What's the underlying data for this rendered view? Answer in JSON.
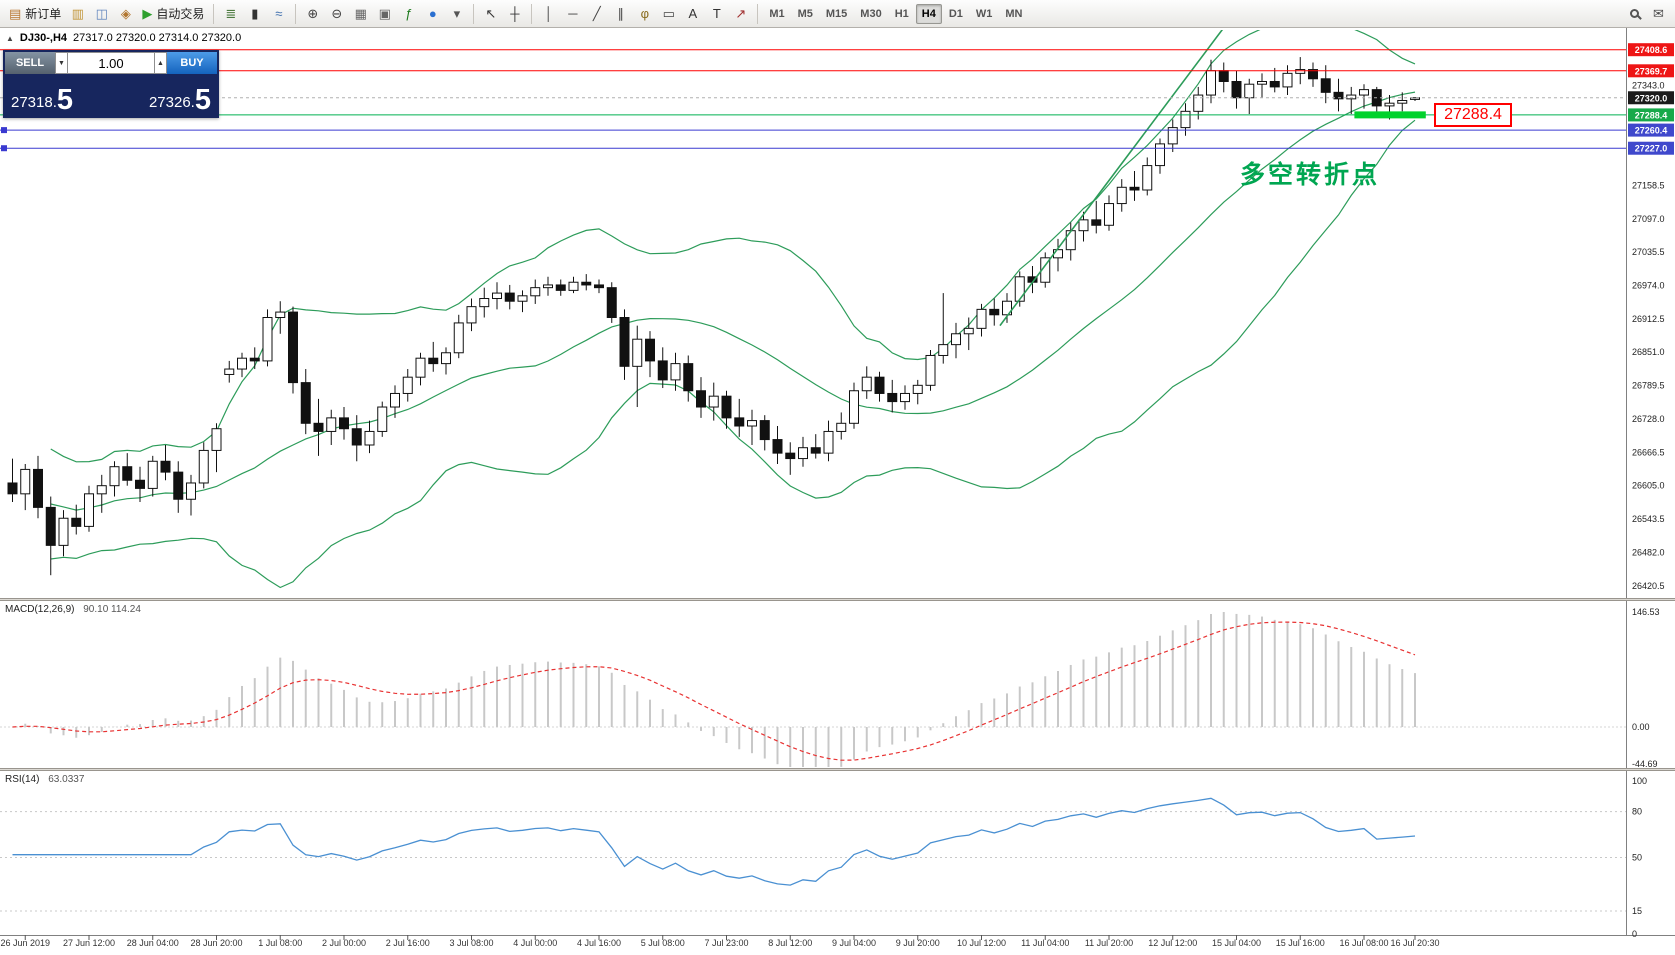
{
  "toolbar": {
    "new_order": {
      "label": "新订单",
      "icon_glyph": "▤"
    },
    "auto_trading": {
      "label": "自动交易",
      "icon_glyph": "▶"
    },
    "messages_icon_glyph": "✉",
    "left_icons": [
      {
        "name": "market-watch-icon",
        "glyph": "▥",
        "color": "#c2963a"
      },
      {
        "name": "data-window-icon",
        "glyph": "◫",
        "color": "#5f84bd"
      },
      {
        "name": "navigator-icon",
        "glyph": "◈",
        "color": "#b2762f"
      }
    ],
    "chart_icons": [
      {
        "name": "bar-chart-icon",
        "glyph": "≣",
        "color": "#4c7a3f"
      },
      {
        "name": "candlestick-chart-icon",
        "glyph": "▮",
        "color": "#333333"
      },
      {
        "name": "line-chart-icon",
        "glyph": "≈",
        "color": "#3f6fae"
      }
    ],
    "tool_icons": [
      {
        "name": "zoom-in-icon",
        "glyph": "⊕",
        "color": "#444444"
      },
      {
        "name": "zoom-out-icon",
        "glyph": "⊖",
        "color": "#444444"
      },
      {
        "name": "tile-windows-icon",
        "glyph": "▦",
        "color": "#666666"
      },
      {
        "name": "arrange-windows-icon",
        "glyph": "▣",
        "color": "#666666"
      },
      {
        "name": "indicators-icon",
        "glyph": "ƒ",
        "color": "#1e7a1e"
      },
      {
        "name": "objects-list-icon",
        "glyph": "●",
        "color": "#2a6fd0"
      },
      {
        "name": "templates-icon",
        "glyph": "▾",
        "color": "#555555"
      }
    ],
    "cursor_icons": [
      {
        "name": "cursor-icon",
        "glyph": "↖",
        "color": "#333333"
      },
      {
        "name": "crosshair-icon",
        "glyph": "┼",
        "color": "#333333"
      }
    ],
    "draw_icons": [
      {
        "name": "vertical-line-icon",
        "glyph": "│",
        "color": "#444444"
      },
      {
        "name": "horizontal-line-icon",
        "glyph": "─",
        "color": "#444444"
      },
      {
        "name": "trendline-icon",
        "glyph": "╱",
        "color": "#444444"
      },
      {
        "name": "channel-icon",
        "glyph": "∥",
        "color": "#444444"
      },
      {
        "name": "fibonacci-icon",
        "glyph": "φ",
        "color": "#8a6d1f"
      },
      {
        "name": "shapes-icon",
        "glyph": "▭",
        "color": "#444444"
      },
      {
        "name": "text-icon",
        "glyph": "A",
        "color": "#333333"
      },
      {
        "name": "label-icon",
        "glyph": "T",
        "color": "#333333"
      },
      {
        "name": "arrows-icon",
        "glyph": "↗",
        "color": "#a03030"
      }
    ],
    "timeframes": [
      "M1",
      "M5",
      "M15",
      "M30",
      "H1",
      "H4",
      "D1",
      "W1",
      "MN"
    ],
    "active_timeframe": "H4"
  },
  "trade_panel": {
    "sell_label": "SELL",
    "buy_label": "BUY",
    "volume": "1.00",
    "spin_down_glyph": "▼",
    "spin_up_glyph": "▲",
    "sell_price_main": "27318.",
    "sell_price_pip": "5",
    "buy_price_main": "27326.",
    "buy_price_pip": "5"
  },
  "chart": {
    "collapse_glyph": "▲",
    "symbol_period": "DJ30-,H4",
    "ohlc_text": "27317.0 27320.0 27314.0 27320.0",
    "annotation": "多空转折点",
    "callout": "27288.4"
  },
  "chart_data": {
    "type": "candlestick",
    "symbol": "DJ30-",
    "timeframe": "H4",
    "price_range": {
      "min": 26398,
      "max": 27432
    },
    "candles": [
      [
        26610,
        26655,
        26575,
        26590
      ],
      [
        26590,
        26645,
        26560,
        26635
      ],
      [
        26635,
        26660,
        26545,
        26565
      ],
      [
        26565,
        26585,
        26440,
        26495
      ],
      [
        26495,
        26560,
        26475,
        26545
      ],
      [
        26545,
        26570,
        26515,
        26530
      ],
      [
        26530,
        26605,
        26520,
        26590
      ],
      [
        26590,
        26625,
        26555,
        26605
      ],
      [
        26605,
        26650,
        26585,
        26640
      ],
      [
        26640,
        26665,
        26605,
        26615
      ],
      [
        26615,
        26640,
        26575,
        26600
      ],
      [
        26600,
        26660,
        26585,
        26650
      ],
      [
        26650,
        26680,
        26615,
        26630
      ],
      [
        26630,
        26650,
        26555,
        26580
      ],
      [
        26580,
        26625,
        26550,
        26610
      ],
      [
        26610,
        26685,
        26600,
        26670
      ],
      [
        26670,
        26720,
        26630,
        26710
      ],
      [
        26810,
        26835,
        26795,
        26820
      ],
      [
        26820,
        26850,
        26805,
        26840
      ],
      [
        26840,
        26860,
        26820,
        26835
      ],
      [
        26835,
        26930,
        26825,
        26915
      ],
      [
        26915,
        26945,
        26885,
        26925
      ],
      [
        26925,
        26935,
        26775,
        26795
      ],
      [
        26795,
        26820,
        26700,
        26720
      ],
      [
        26720,
        26765,
        26660,
        26705
      ],
      [
        26705,
        26745,
        26680,
        26730
      ],
      [
        26730,
        26750,
        26690,
        26710
      ],
      [
        26710,
        26735,
        26650,
        26680
      ],
      [
        26680,
        26725,
        26665,
        26705
      ],
      [
        26705,
        26760,
        26695,
        26750
      ],
      [
        26750,
        26790,
        26730,
        26775
      ],
      [
        26775,
        26820,
        26760,
        26805
      ],
      [
        26805,
        26850,
        26790,
        26840
      ],
      [
        26840,
        26870,
        26815,
        26830
      ],
      [
        26830,
        26860,
        26810,
        26850
      ],
      [
        26850,
        26920,
        26840,
        26905
      ],
      [
        26905,
        26950,
        26890,
        26935
      ],
      [
        26935,
        26970,
        26915,
        26950
      ],
      [
        26950,
        26980,
        26930,
        26960
      ],
      [
        26960,
        26975,
        26930,
        26945
      ],
      [
        26945,
        26965,
        26925,
        26955
      ],
      [
        26955,
        26985,
        26940,
        26970
      ],
      [
        26970,
        26990,
        26955,
        26975
      ],
      [
        26975,
        26985,
        26955,
        26965
      ],
      [
        26965,
        26990,
        26960,
        26980
      ],
      [
        26980,
        26995,
        26965,
        26975
      ],
      [
        26975,
        26985,
        26960,
        26970
      ],
      [
        26970,
        26980,
        26905,
        26915
      ],
      [
        26915,
        26930,
        26800,
        26825
      ],
      [
        26825,
        26900,
        26750,
        26875
      ],
      [
        26875,
        26890,
        26805,
        26835
      ],
      [
        26835,
        26860,
        26785,
        26800
      ],
      [
        26800,
        26850,
        26780,
        26830
      ],
      [
        26830,
        26845,
        26760,
        26780
      ],
      [
        26780,
        26805,
        26730,
        26750
      ],
      [
        26750,
        26795,
        26725,
        26770
      ],
      [
        26770,
        26780,
        26710,
        26730
      ],
      [
        26730,
        26765,
        26695,
        26715
      ],
      [
        26715,
        26745,
        26680,
        26725
      ],
      [
        26725,
        26735,
        26670,
        26690
      ],
      [
        26690,
        26715,
        26645,
        26665
      ],
      [
        26665,
        26685,
        26625,
        26655
      ],
      [
        26655,
        26695,
        26640,
        26675
      ],
      [
        26675,
        26700,
        26655,
        26665
      ],
      [
        26665,
        26725,
        26650,
        26705
      ],
      [
        26705,
        26740,
        26690,
        26720
      ],
      [
        26720,
        26795,
        26710,
        26780
      ],
      [
        26780,
        26825,
        26765,
        26805
      ],
      [
        26805,
        26815,
        26760,
        26775
      ],
      [
        26775,
        26800,
        26740,
        26760
      ],
      [
        26760,
        26790,
        26745,
        26775
      ],
      [
        26775,
        26800,
        26755,
        26790
      ],
      [
        26790,
        26855,
        26780,
        26845
      ],
      [
        26845,
        26960,
        26830,
        26865
      ],
      [
        26865,
        26905,
        26840,
        26885
      ],
      [
        26885,
        26915,
        26855,
        26895
      ],
      [
        26895,
        26940,
        26880,
        26930
      ],
      [
        26930,
        26950,
        26900,
        26920
      ],
      [
        26920,
        26960,
        26905,
        26945
      ],
      [
        26945,
        27000,
        26935,
        26990
      ],
      [
        26990,
        27010,
        26960,
        26980
      ],
      [
        26980,
        27035,
        26970,
        27025
      ],
      [
        27025,
        27060,
        27000,
        27040
      ],
      [
        27040,
        27090,
        27020,
        27075
      ],
      [
        27075,
        27110,
        27055,
        27095
      ],
      [
        27095,
        27130,
        27070,
        27085
      ],
      [
        27085,
        27140,
        27075,
        27125
      ],
      [
        27125,
        27170,
        27110,
        27155
      ],
      [
        27155,
        27185,
        27130,
        27150
      ],
      [
        27150,
        27210,
        27140,
        27195
      ],
      [
        27195,
        27245,
        27180,
        27235
      ],
      [
        27235,
        27280,
        27220,
        27265
      ],
      [
        27265,
        27310,
        27250,
        27295
      ],
      [
        27295,
        27340,
        27280,
        27325
      ],
      [
        27325,
        27390,
        27310,
        27370
      ],
      [
        27370,
        27385,
        27330,
        27350
      ],
      [
        27350,
        27370,
        27300,
        27320
      ],
      [
        27320,
        27355,
        27290,
        27345
      ],
      [
        27345,
        27365,
        27320,
        27350
      ],
      [
        27350,
        27375,
        27330,
        27340
      ],
      [
        27340,
        27380,
        27325,
        27365
      ],
      [
        27365,
        27395,
        27345,
        27372
      ],
      [
        27372,
        27385,
        27340,
        27355
      ],
      [
        27355,
        27380,
        27310,
        27330
      ],
      [
        27330,
        27355,
        27295,
        27318
      ],
      [
        27318,
        27340,
        27290,
        27325
      ],
      [
        27325,
        27345,
        27300,
        27335
      ],
      [
        27335,
        27340,
        27285,
        27305
      ],
      [
        27305,
        27325,
        27280,
        27310
      ],
      [
        27310,
        27330,
        27295,
        27315
      ],
      [
        27317,
        27320,
        27314,
        27320
      ]
    ],
    "time_labels": [
      {
        "i": 1,
        "t": "26 Jun 2019"
      },
      {
        "i": 6,
        "t": "27 Jun 12:00"
      },
      {
        "i": 11,
        "t": "28 Jun 04:00"
      },
      {
        "i": 16,
        "t": "28 Jun 20:00"
      },
      {
        "i": 21,
        "t": "1 Jul 08:00"
      },
      {
        "i": 26,
        "t": "2 Jul 00:00"
      },
      {
        "i": 31,
        "t": "2 Jul 16:00"
      },
      {
        "i": 36,
        "t": "3 Jul 08:00"
      },
      {
        "i": 41,
        "t": "4 Jul 00:00"
      },
      {
        "i": 46,
        "t": "4 Jul 16:00"
      },
      {
        "i": 51,
        "t": "5 Jul 08:00"
      },
      {
        "i": 56,
        "t": "7 Jul 23:00"
      },
      {
        "i": 61,
        "t": "8 Jul 12:00"
      },
      {
        "i": 66,
        "t": "9 Jul 04:00"
      },
      {
        "i": 71,
        "t": "9 Jul 20:00"
      },
      {
        "i": 76,
        "t": "10 Jul 12:00"
      },
      {
        "i": 81,
        "t": "11 Jul 04:00"
      },
      {
        "i": 86,
        "t": "11 Jul 20:00"
      },
      {
        "i": 91,
        "t": "12 Jul 12:00"
      },
      {
        "i": 96,
        "t": "15 Jul 04:00"
      },
      {
        "i": 101,
        "t": "15 Jul 16:00"
      },
      {
        "i": 106,
        "t": "16 Jul 08:00"
      },
      {
        "i": 110,
        "t": "16 Jul 20:30"
      }
    ],
    "price_axis_labels": [
      27343.0,
      27158.5,
      27097.0,
      27035.5,
      26974.0,
      26912.5,
      26851.0,
      26789.5,
      26728.0,
      26666.5,
      26605.0,
      26543.5,
      26482.0,
      26420.5
    ],
    "hlines": [
      {
        "name": "resistance-line-1",
        "price": 27408.6,
        "label": "27408.6",
        "color": "#ff0000",
        "badge": "#ee1515",
        "handles": false
      },
      {
        "name": "resistance-line-2",
        "price": 27369.7,
        "label": "27369.7",
        "color": "#ff0000",
        "badge": "#ee1515",
        "handles": false
      },
      {
        "name": "support-line-green",
        "price": 27288.4,
        "label": "27288.4",
        "color": "#00b050",
        "badge": "#17a94a",
        "handles": false
      },
      {
        "name": "support-line-blue-1",
        "price": 27260.4,
        "label": "27260.4",
        "color": "#3a3ad0",
        "badge": "#3f48cc",
        "handles": true
      },
      {
        "name": "support-line-blue-2",
        "price": 27227.0,
        "label": "27227.0",
        "color": "#3a3ad0",
        "badge": "#3f48cc",
        "handles": true
      }
    ],
    "current_price": {
      "value": 27320.0,
      "label": "27320.0",
      "badge": "#1b1b1b",
      "line_color": "#b0b0b0"
    },
    "bollinger": {
      "period": 20,
      "deviation": 2,
      "color": "#2d9c5a"
    },
    "trend_line": {
      "i1": 77.8,
      "p1": 26900,
      "i2": 95.7,
      "p2": 27460,
      "color": "#2d9c5a"
    },
    "highlight_bar": {
      "price": 27288.4,
      "i1": 105.6,
      "i2": 111.2,
      "color": "#00d22c"
    },
    "macd": {
      "title": "MACD(12,26,9)",
      "values": "90.10 114.24",
      "scale": [
        "146.53",
        "0.00",
        "-44.69"
      ],
      "bar_color": "#c8c8c8",
      "signal_color": "#e83232"
    },
    "rsi": {
      "title": "RSI(14)",
      "value": "63.0337",
      "scale": [
        {
          "label": "100",
          "value": 100
        },
        {
          "label": "80",
          "value": 80
        },
        {
          "label": "50",
          "value": 50
        },
        {
          "label": "15",
          "value": 15
        },
        {
          "label": "0",
          "value": 0
        }
      ],
      "levels": [
        80,
        50,
        15
      ],
      "color": "#4a90d2"
    }
  }
}
